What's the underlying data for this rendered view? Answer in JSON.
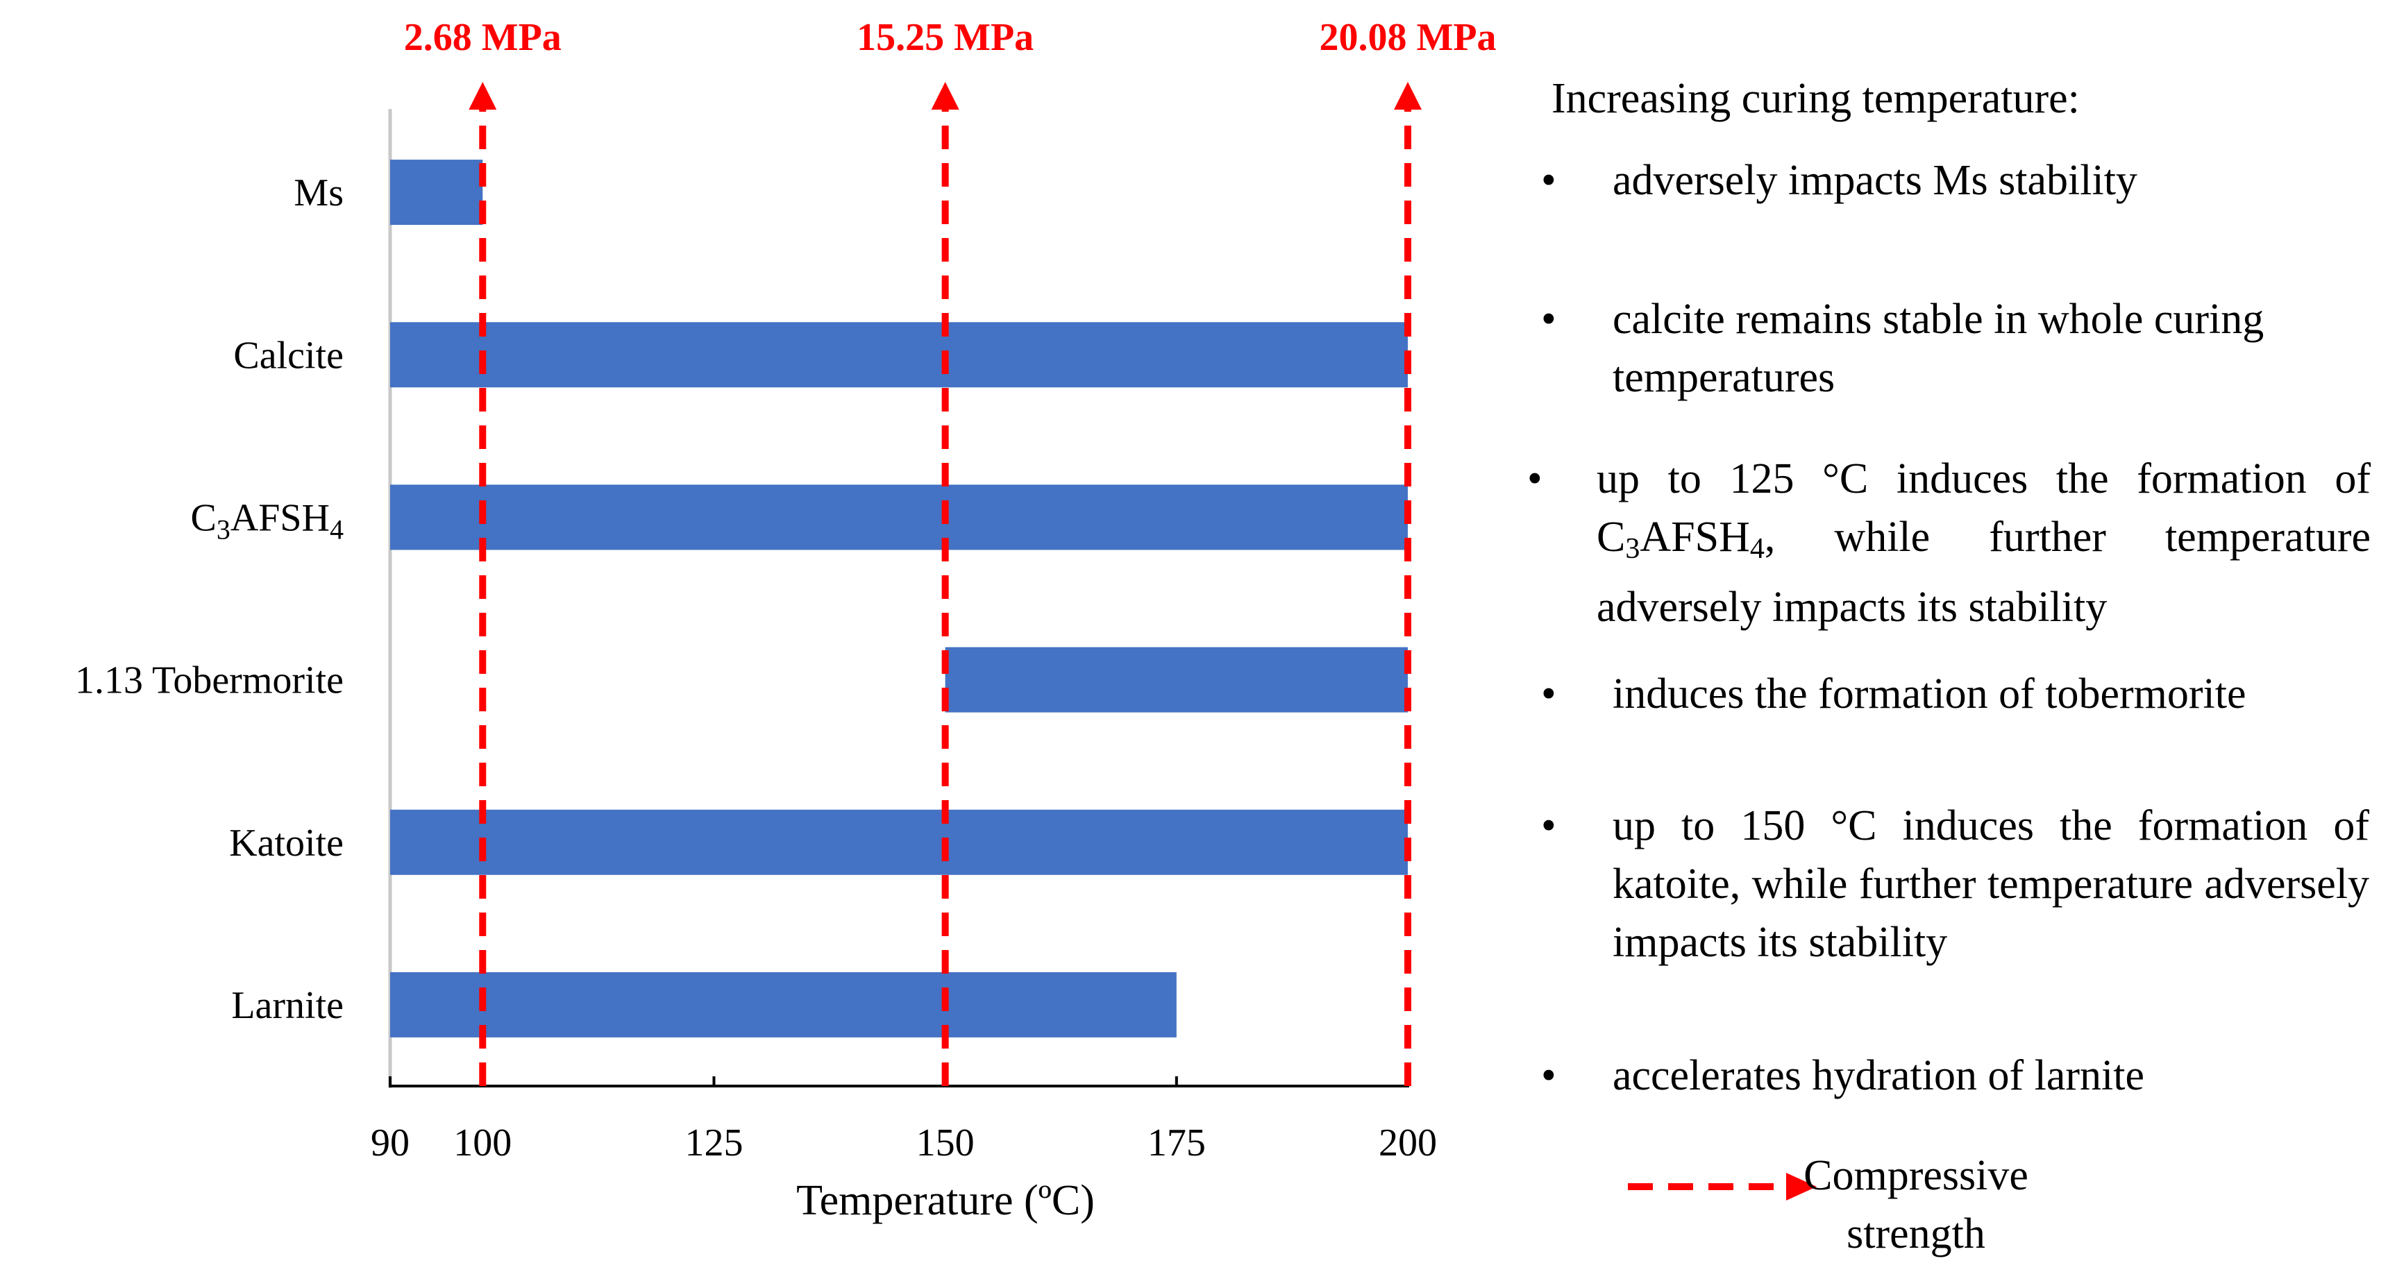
{
  "chart_data": {
    "type": "bar",
    "orientation": "horizontal-range",
    "categories": [
      "Ms",
      "Calcite",
      "C3AFSH4",
      "1.13 Tobermorite",
      "Katoite",
      "Larnite"
    ],
    "category_labels": [
      {
        "main": "Ms",
        "subs": []
      },
      {
        "main": "Calcite",
        "subs": []
      },
      {
        "parts": [
          "C",
          "3",
          "AFSH",
          "4"
        ]
      },
      {
        "main": "1.13 Tobermorite",
        "subs": []
      },
      {
        "main": "Katoite",
        "subs": []
      },
      {
        "main": "Larnite",
        "subs": []
      }
    ],
    "ranges": [
      [
        90,
        100
      ],
      [
        90,
        200
      ],
      [
        90,
        200
      ],
      [
        150,
        200
      ],
      [
        90,
        200
      ],
      [
        90,
        175
      ]
    ],
    "xlim": [
      90,
      200
    ],
    "xticks": [
      90,
      100,
      125,
      150,
      175,
      200
    ],
    "xtick_labels": [
      "90",
      "100",
      "125",
      "150",
      "175",
      "200"
    ],
    "xlabel": "Temperature (ºC)",
    "bar_color": "#4472C4",
    "markers": [
      {
        "x": 100,
        "label": "2.68 MPa"
      },
      {
        "x": 150,
        "label": "15.25 MPa"
      },
      {
        "x": 200,
        "label": "20.08 MPa"
      }
    ],
    "marker_color": "#FF0000",
    "legend": {
      "label": "Compressive strength",
      "line1": "Compressive",
      "line2": "strength"
    }
  },
  "notes": {
    "heading": "Increasing curing temperature:",
    "bullet": "•",
    "items": [
      {
        "text": "adversely impacts Ms stability"
      },
      {
        "text": "calcite remains stable in whole curing temperatures"
      },
      {
        "pre": "up to 125 °C induces the formation of C",
        "sub1": "3",
        "mid": "AFSH",
        "sub2": "4",
        "post": ", while further temperature adversely impacts its stability"
      },
      {
        "text": "induces the formation of tobermorite"
      },
      {
        "text": "up to 150 °C induces the formation of katoite, while further temperature adversely impacts its stability"
      },
      {
        "text": "accelerates hydration of larnite"
      }
    ]
  }
}
